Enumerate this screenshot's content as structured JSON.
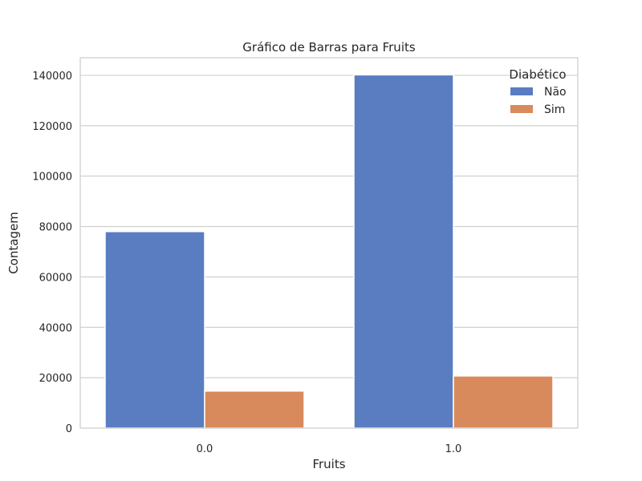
{
  "chart_data": {
    "type": "bar",
    "title": "Gráfico de Barras para Fruits",
    "xlabel": "Fruits",
    "ylabel": "Contagem",
    "categories": [
      "0.0",
      "1.0"
    ],
    "series": [
      {
        "name": "Não",
        "values": [
          78000,
          140200
        ],
        "color": "#5a7dc2"
      },
      {
        "name": "Sim",
        "values": [
          14700,
          20700
        ],
        "color": "#d98a5c"
      }
    ],
    "ylim": [
      0,
      147000
    ],
    "yticks": [
      0,
      20000,
      40000,
      60000,
      80000,
      100000,
      120000,
      140000
    ],
    "ytick_labels": [
      "0",
      "20000",
      "40000",
      "60000",
      "80000",
      "100000",
      "120000",
      "140000"
    ],
    "grid": true,
    "legend": {
      "title": "Diabético",
      "placement": "top-right"
    }
  }
}
